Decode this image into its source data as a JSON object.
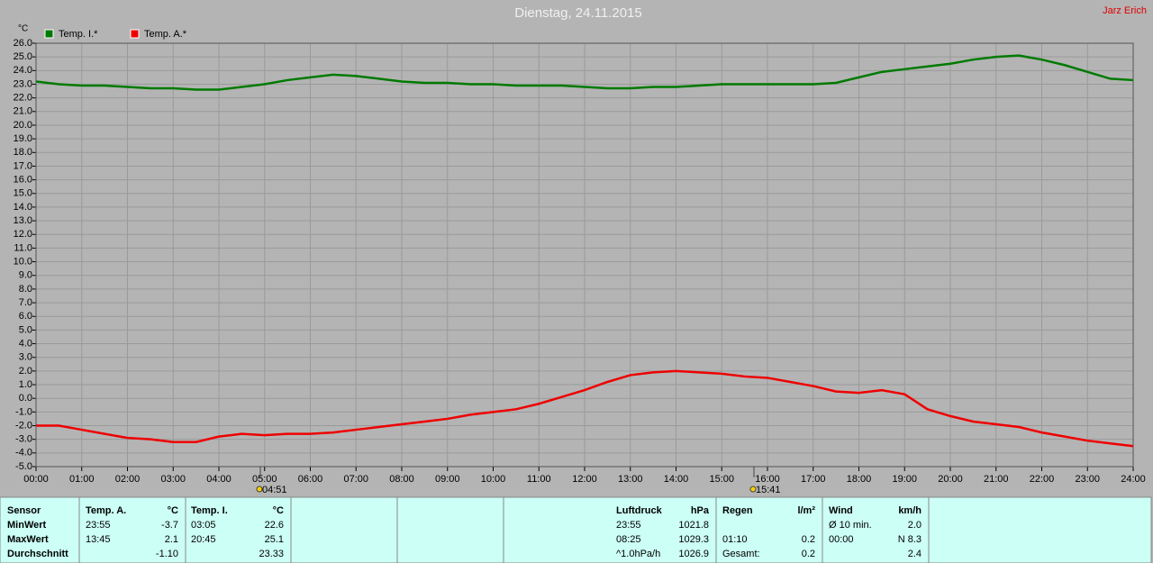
{
  "author": "Jarz Erich",
  "chart_data": {
    "type": "line",
    "title": "Dienstag, 24.11.2015",
    "y_unit": "°C",
    "x": [
      0,
      0.5,
      1,
      1.5,
      2,
      2.5,
      3,
      3.5,
      4,
      4.5,
      5,
      5.5,
      6,
      6.5,
      7,
      7.5,
      8,
      8.5,
      9,
      9.5,
      10,
      10.5,
      11,
      11.5,
      12,
      12.5,
      13,
      13.5,
      14,
      14.5,
      15,
      15.5,
      16,
      16.5,
      17,
      17.5,
      18,
      18.5,
      19,
      19.5,
      20,
      20.5,
      21,
      21.5,
      22,
      22.5,
      23,
      23.5,
      24
    ],
    "series": [
      {
        "name": "Temp. I.*",
        "color": "#007a00",
        "values": [
          23.2,
          23.0,
          22.9,
          22.9,
          22.8,
          22.7,
          22.7,
          22.6,
          22.6,
          22.8,
          23.0,
          23.3,
          23.5,
          23.7,
          23.6,
          23.4,
          23.2,
          23.1,
          23.1,
          23.0,
          23.0,
          22.9,
          22.9,
          22.9,
          22.8,
          22.7,
          22.7,
          22.8,
          22.8,
          22.9,
          23.0,
          23.0,
          23.0,
          23.0,
          23.0,
          23.1,
          23.5,
          23.9,
          24.1,
          24.3,
          24.5,
          24.8,
          25.0,
          25.1,
          24.8,
          24.4,
          23.9,
          23.4,
          23.3
        ]
      },
      {
        "name": "Temp. A.*",
        "color": "#ee0000",
        "values": [
          -2.0,
          -2.0,
          -2.3,
          -2.6,
          -2.9,
          -3.0,
          -3.2,
          -3.2,
          -2.8,
          -2.6,
          -2.7,
          -2.6,
          -2.6,
          -2.5,
          -2.3,
          -2.1,
          -1.9,
          -1.7,
          -1.5,
          -1.2,
          -1.0,
          -0.8,
          -0.4,
          0.1,
          0.6,
          1.2,
          1.7,
          1.9,
          2.0,
          1.9,
          1.8,
          1.6,
          1.5,
          1.2,
          0.9,
          0.5,
          0.4,
          0.6,
          0.3,
          -0.8,
          -1.3,
          -1.7,
          -1.9,
          -2.1,
          -2.5,
          -2.8,
          -3.1,
          -3.3,
          -3.5
        ]
      }
    ],
    "xlim": [
      0,
      24
    ],
    "xticks": [
      {
        "value": 0,
        "label": "00:00"
      },
      {
        "value": 1,
        "label": "01:00"
      },
      {
        "value": 2,
        "label": "02:00"
      },
      {
        "value": 3,
        "label": "03:00"
      },
      {
        "value": 4,
        "label": "04:00"
      },
      {
        "value": 5,
        "label": "05:00"
      },
      {
        "value": 6,
        "label": "06:00"
      },
      {
        "value": 7,
        "label": "07:00"
      },
      {
        "value": 8,
        "label": "08:00"
      },
      {
        "value": 9,
        "label": "09:00"
      },
      {
        "value": 10,
        "label": "10:00"
      },
      {
        "value": 11,
        "label": "11:00"
      },
      {
        "value": 12,
        "label": "12:00"
      },
      {
        "value": 13,
        "label": "13:00"
      },
      {
        "value": 14,
        "label": "14:00"
      },
      {
        "value": 15,
        "label": "15:00"
      },
      {
        "value": 16,
        "label": "16:00"
      },
      {
        "value": 17,
        "label": "17:00"
      },
      {
        "value": 18,
        "label": "18:00"
      },
      {
        "value": 19,
        "label": "19:00"
      },
      {
        "value": 20,
        "label": "20:00"
      },
      {
        "value": 21,
        "label": "21:00"
      },
      {
        "value": 22,
        "label": "22:00"
      },
      {
        "value": 23,
        "label": "23:00"
      },
      {
        "value": 24,
        "label": "24:00"
      }
    ],
    "ylim": [
      -5,
      26
    ],
    "yticks": [
      {
        "value": 26,
        "label": "26.0"
      },
      {
        "value": 25,
        "label": "25.0"
      },
      {
        "value": 24,
        "label": "24.0"
      },
      {
        "value": 23,
        "label": "23.0"
      },
      {
        "value": 22,
        "label": "22.0"
      },
      {
        "value": 21,
        "label": "21.0"
      },
      {
        "value": 20,
        "label": "20.0"
      },
      {
        "value": 19,
        "label": "19.0"
      },
      {
        "value": 18,
        "label": "18.0"
      },
      {
        "value": 17,
        "label": "17.0"
      },
      {
        "value": 16,
        "label": "16.0"
      },
      {
        "value": 15,
        "label": "15.0"
      },
      {
        "value": 14,
        "label": "14.0"
      },
      {
        "value": 13,
        "label": "13.0"
      },
      {
        "value": 12,
        "label": "12.0"
      },
      {
        "value": 11,
        "label": "11.0"
      },
      {
        "value": 10,
        "label": "10.0"
      },
      {
        "value": 9,
        "label": "9.0"
      },
      {
        "value": 8,
        "label": "8.0"
      },
      {
        "value": 7,
        "label": "7.0"
      },
      {
        "value": 6,
        "label": "6.0"
      },
      {
        "value": 5,
        "label": "5.0"
      },
      {
        "value": 4,
        "label": "4.0"
      },
      {
        "value": 3,
        "label": "3.0"
      },
      {
        "value": 2,
        "label": "2.0"
      },
      {
        "value": 1,
        "label": "1.0"
      },
      {
        "value": 0,
        "label": "0.0"
      },
      {
        "value": -1,
        "label": "-1.0"
      },
      {
        "value": -2,
        "label": "-2.0"
      },
      {
        "value": -3,
        "label": "-3.0"
      },
      {
        "value": -4,
        "label": "-4.0"
      },
      {
        "value": -5,
        "label": "-5.0"
      }
    ],
    "grid": true,
    "annotations": [
      "04:51",
      "15:41"
    ]
  },
  "table": {
    "sensor": {
      "header": "Sensor",
      "rows": [
        "MinWert",
        "MaxWert",
        "Durchschnitt"
      ]
    },
    "panels": [
      {
        "title": "Temp. A.",
        "unit": "°C",
        "rows": [
          [
            "23:55",
            "-3.7"
          ],
          [
            "13:45",
            "2.1"
          ],
          [
            null,
            "-1.10"
          ]
        ]
      },
      {
        "title": "Temp. I.",
        "unit": "°C",
        "rows": [
          [
            "03:05",
            "22.6"
          ],
          [
            "20:45",
            "25.1"
          ],
          [
            null,
            "23.33"
          ]
        ]
      },
      {
        "title": "Luftdruck",
        "unit": "hPa",
        "rows": [
          [
            "23:55",
            "1021.8"
          ],
          [
            "08:25",
            "1029.3"
          ],
          [
            "^1.0hPa/h",
            "1026.9"
          ]
        ]
      },
      {
        "title": "Regen",
        "unit": "l/m²",
        "rows": [
          [
            null,
            null
          ],
          [
            "01:10",
            "0.2"
          ],
          [
            "Gesamt:",
            "0.2"
          ]
        ]
      },
      {
        "title": "Wind",
        "unit": "km/h",
        "rows": [
          [
            "Ø 10 min.",
            "2.0"
          ],
          [
            "00:00",
            "N 8.3"
          ],
          [
            null,
            "2.4"
          ]
        ]
      }
    ]
  }
}
